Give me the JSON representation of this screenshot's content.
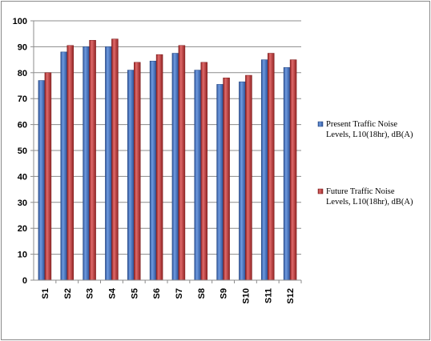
{
  "chart_data": {
    "type": "bar",
    "title": "",
    "xlabel": "",
    "ylabel": "",
    "ylim": [
      0,
      100
    ],
    "yticks": [
      0,
      10,
      20,
      30,
      40,
      50,
      60,
      70,
      80,
      90,
      100
    ],
    "grid": true,
    "legend_position": "right",
    "categories": [
      "S1",
      "S2",
      "S3",
      "S4",
      "S5",
      "S6",
      "S7",
      "S8",
      "S9",
      "S10",
      "S11",
      "S12"
    ],
    "series": [
      {
        "name": "Present Traffic Noise Levels, L10(18hr), dB(A)",
        "legend_lines": [
          "Present Traffic Noise",
          "Levels, L10(18hr), dB(A)"
        ],
        "color": "#3f6fc4",
        "values": [
          77,
          88,
          90,
          90,
          81,
          84.5,
          87.5,
          81,
          75.5,
          76.5,
          85,
          82
        ]
      },
      {
        "name": "Future Traffic Noise Levels, L10(18hr), dB(A)",
        "legend_lines": [
          "Future Traffic Noise",
          "Levels, L10(18hr), dB(A)"
        ],
        "color": "#c43a3a",
        "values": [
          80,
          90.5,
          92.5,
          93,
          84,
          87,
          90.5,
          84,
          78,
          79,
          87.5,
          85
        ]
      }
    ]
  }
}
